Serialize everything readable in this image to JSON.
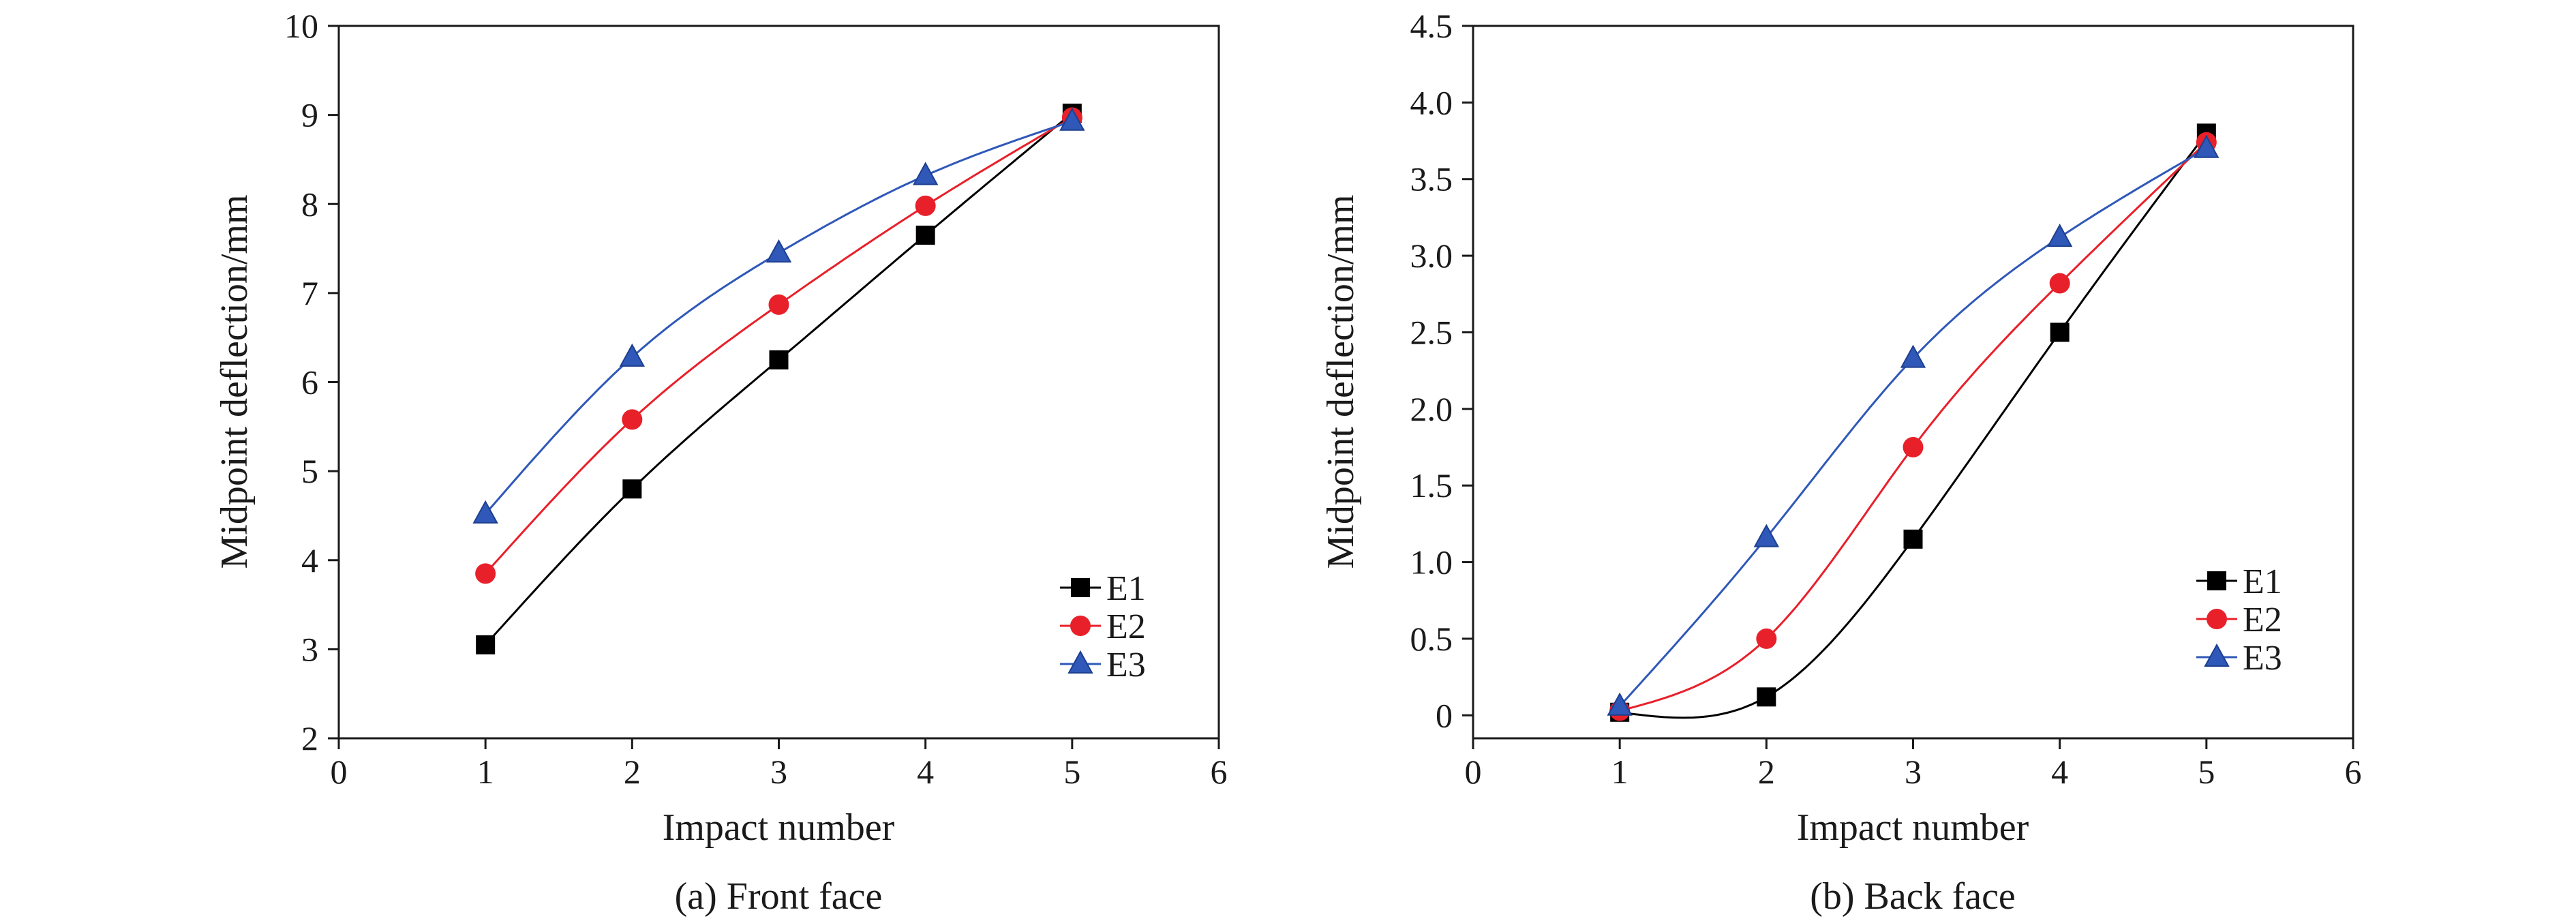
{
  "chart_data": [
    {
      "type": "line",
      "subtitle": "(a) Front face",
      "xlabel": "Impact number",
      "ylabel": "Midpoint deflection/mm",
      "xlim": [
        0,
        6
      ],
      "ylim": [
        2,
        10
      ],
      "xticks": [
        0,
        1,
        2,
        3,
        4,
        5,
        6
      ],
      "yticks": [
        2,
        3,
        4,
        5,
        6,
        7,
        8,
        9,
        10
      ],
      "xtick_labels": [
        "0",
        "1",
        "2",
        "3",
        "4",
        "5",
        "6"
      ],
      "ytick_labels": [
        "2",
        "3",
        "4",
        "5",
        "6",
        "7",
        "8",
        "9",
        "10"
      ],
      "grid": false,
      "legend_position": "bottom-right",
      "x": [
        1,
        2,
        3,
        4,
        5
      ],
      "series": [
        {
          "name": "E1",
          "color": "#000000",
          "marker": "square",
          "values": [
            3.05,
            4.8,
            6.25,
            7.65,
            9.02
          ]
        },
        {
          "name": "E2",
          "color": "#e8202a",
          "marker": "circle",
          "values": [
            3.85,
            5.58,
            6.87,
            7.98,
            8.97
          ]
        },
        {
          "name": "E3",
          "color": "#2f58b8",
          "marker": "triangle",
          "values": [
            4.52,
            6.28,
            7.45,
            8.32,
            8.93
          ]
        }
      ]
    },
    {
      "type": "line",
      "subtitle": "(b) Back face",
      "xlabel": "Impact number",
      "ylabel": "Midpoint deflection/mm",
      "xlim": [
        0,
        6
      ],
      "ylim": [
        -0.15,
        4.5
      ],
      "xticks": [
        0,
        1,
        2,
        3,
        4,
        5,
        6
      ],
      "yticks": [
        0,
        0.5,
        1.0,
        1.5,
        2.0,
        2.5,
        3.0,
        3.5,
        4.0,
        4.5
      ],
      "xtick_labels": [
        "0",
        "1",
        "2",
        "3",
        "4",
        "5",
        "6"
      ],
      "ytick_labels": [
        "0",
        "0.5",
        "1.0",
        "1.5",
        "2.0",
        "2.5",
        "3.0",
        "3.5",
        "4.0",
        "4.5"
      ],
      "grid": false,
      "legend_position": "bottom-right",
      "x": [
        1,
        2,
        3,
        4,
        5
      ],
      "series": [
        {
          "name": "E1",
          "color": "#000000",
          "marker": "square",
          "values": [
            0.02,
            0.12,
            1.15,
            2.5,
            3.8
          ]
        },
        {
          "name": "E2",
          "color": "#e8202a",
          "marker": "circle",
          "values": [
            0.03,
            0.5,
            1.75,
            2.82,
            3.74
          ]
        },
        {
          "name": "E3",
          "color": "#2f58b8",
          "marker": "triangle",
          "values": [
            0.06,
            1.16,
            2.33,
            3.12,
            3.7
          ]
        }
      ]
    }
  ]
}
